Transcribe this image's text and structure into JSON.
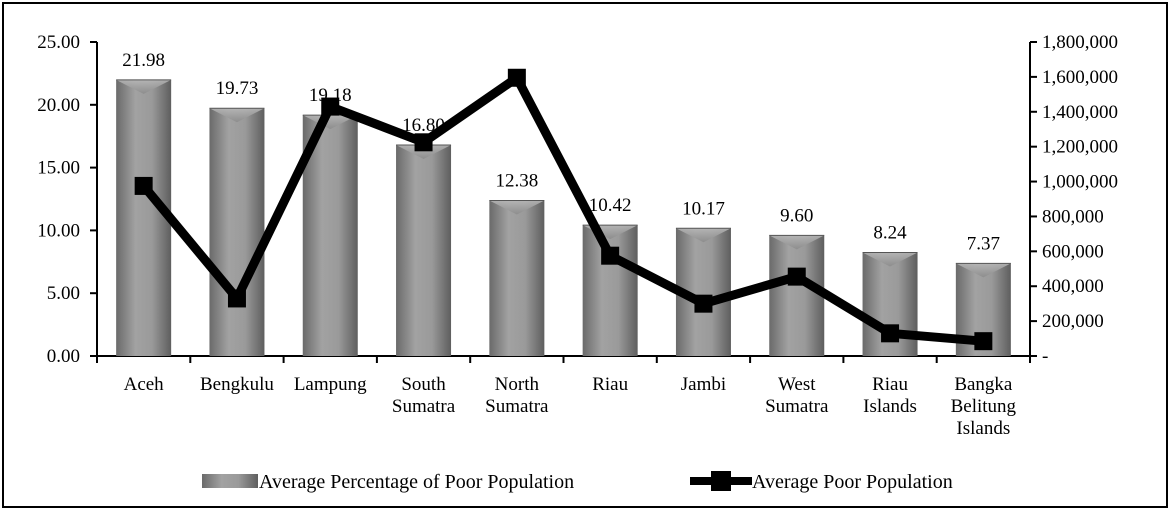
{
  "chart_data": {
    "type": "bar",
    "categories": [
      [
        "Aceh"
      ],
      [
        "Bengkulu"
      ],
      [
        "Lampung"
      ],
      [
        "South",
        "Sumatra"
      ],
      [
        "North",
        "Sumatra"
      ],
      [
        "Riau"
      ],
      [
        "Jambi"
      ],
      [
        "West",
        "Sumatra"
      ],
      [
        "Riau",
        "Islands"
      ],
      [
        "Bangka",
        "Belitung",
        "Islands"
      ]
    ],
    "series": [
      {
        "name": "Average Percentage of Poor Population",
        "type": "bar",
        "axis": "left",
        "values": [
          21.98,
          19.73,
          19.18,
          16.8,
          12.38,
          10.42,
          10.17,
          9.6,
          8.24,
          7.37
        ],
        "labels": [
          "21.98",
          "19.73",
          "19.18",
          "16.80",
          "12.38",
          "10.42",
          "10.17",
          "9.60",
          "8.24",
          "7.37"
        ],
        "color": "#8c8c8c"
      },
      {
        "name": "Average Poor Population",
        "type": "line",
        "axis": "right",
        "values": [
          975000,
          330000,
          1430000,
          1225000,
          1595000,
          575000,
          300000,
          455000,
          130000,
          85000
        ],
        "color": "#000000"
      }
    ],
    "y_left": {
      "range": [
        0,
        25
      ],
      "ticks": [
        0,
        5,
        10,
        15,
        20,
        25
      ],
      "tick_labels": [
        "0.00",
        "5.00",
        "10.00",
        "15.00",
        "20.00",
        "25.00"
      ]
    },
    "y_right": {
      "range": [
        0,
        1800000
      ],
      "ticks": [
        0,
        200000,
        400000,
        600000,
        800000,
        1000000,
        1200000,
        1400000,
        1600000,
        1800000
      ],
      "tick_labels": [
        "-",
        "200,000",
        "400,000",
        "600,000",
        "800,000",
        "1,000,000",
        "1,200,000",
        "1,400,000",
        "1,600,000",
        "1,800,000"
      ]
    },
    "grid": false,
    "legend_position": "bottom"
  }
}
